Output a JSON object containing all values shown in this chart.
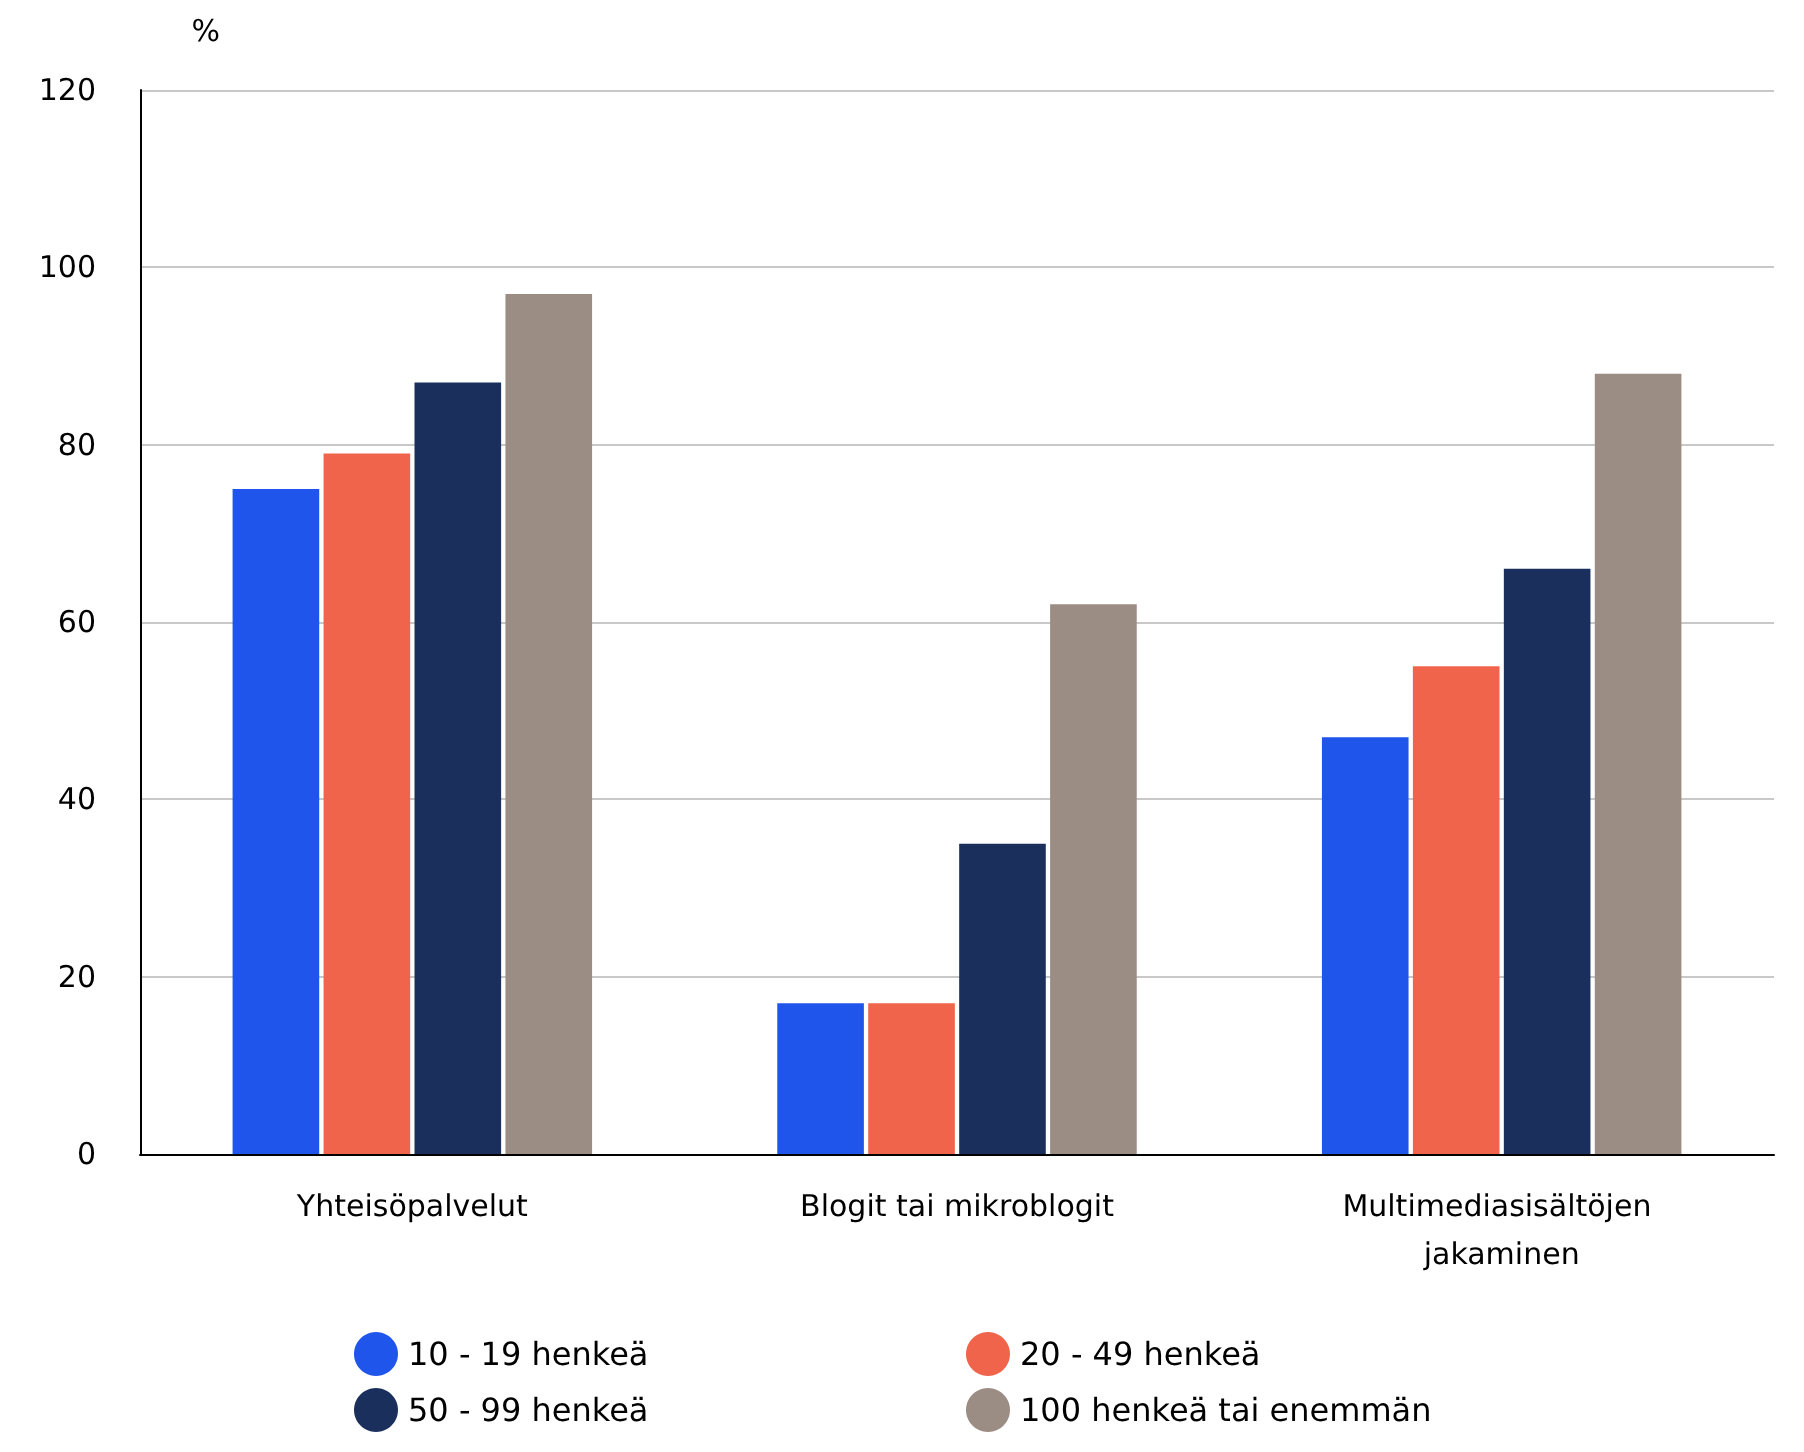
{
  "chart_data": {
    "type": "bar",
    "ylabel": "%",
    "categories": [
      "Yhteisöpalvelut",
      "Blogit tai mikroblogit",
      "Multimediasisältöjen jakaminen"
    ],
    "series": [
      {
        "name": "10 - 19 henkeä",
        "color": "#1f55eb",
        "values": [
          75,
          17,
          47
        ]
      },
      {
        "name": "20 - 49 henkeä",
        "color": "#f0644c",
        "values": [
          79,
          17,
          55
        ]
      },
      {
        "name": "50 - 99 henkeä",
        "color": "#1b2f5c",
        "values": [
          87,
          35,
          66
        ]
      },
      {
        "name": "100 henkeä tai enemmän",
        "color": "#9b8c84",
        "values": [
          97,
          62,
          88
        ]
      }
    ],
    "ylim": [
      0,
      120
    ],
    "yticks": [
      0,
      20,
      40,
      60,
      80,
      100,
      120
    ],
    "grid": "y",
    "legend": "bottom"
  }
}
